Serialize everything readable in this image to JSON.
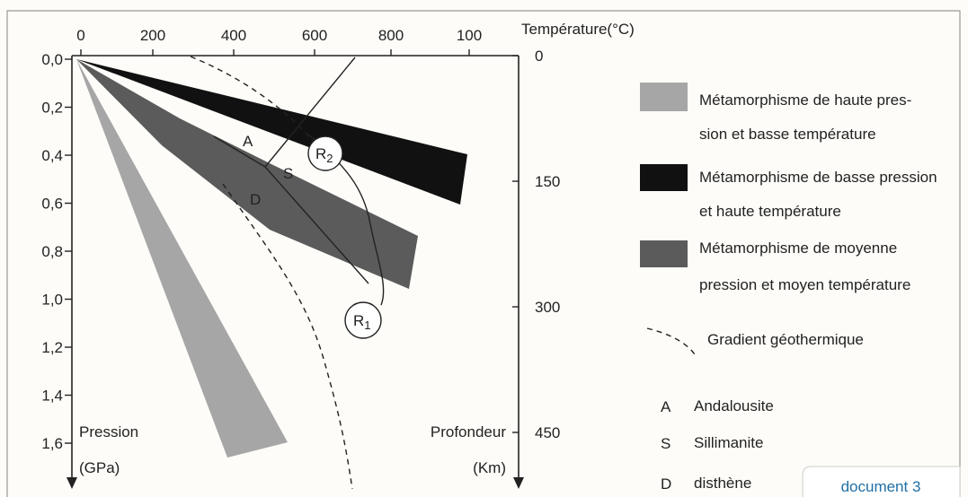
{
  "axes": {
    "top": {
      "label": "Température(°C)",
      "ticks": [
        "0",
        "200",
        "400",
        "600",
        "800",
        "100"
      ]
    },
    "left": {
      "label": "Pression",
      "unit": "(GPa)",
      "ticks": [
        "0,0",
        "0,2",
        "0,4",
        "0,6",
        "0,8",
        "1,0",
        "1,2",
        "1,4",
        "1,6"
      ]
    },
    "right": {
      "label": "Profondeur",
      "unit": "(Km)",
      "ticks": [
        "0",
        "150",
        "300",
        "450"
      ]
    }
  },
  "regions": [
    "A",
    "S",
    "D"
  ],
  "reactions": [
    {
      "letter": "R",
      "index": "2"
    },
    {
      "letter": "R",
      "index": "1"
    }
  ],
  "legend": {
    "items": [
      {
        "lines": [
          "Métamorphisme de haute pres-",
          "sion et basse température"
        ]
      },
      {
        "lines": [
          "Métamorphisme de basse pression",
          "et haute température"
        ]
      },
      {
        "lines": [
          "Métamorphisme de moyenne",
          "pression et moyen température"
        ]
      }
    ],
    "gradient": "Gradient géothermique",
    "minerals": [
      {
        "symbol": "A",
        "name": "Andalousite"
      },
      {
        "symbol": "S",
        "name": "Sillimanite"
      },
      {
        "symbol": "D",
        "name": "disthène"
      }
    ]
  },
  "footer": "document 3"
}
